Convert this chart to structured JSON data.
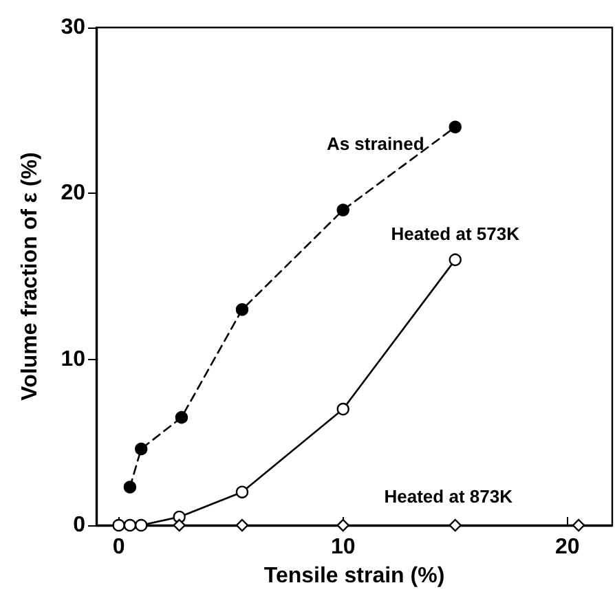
{
  "chart_data": {
    "type": "line",
    "xlabel": "Tensile strain (%)",
    "ylabel": "Volume fraction of ε (%)",
    "xlim": [
      -1,
      22
    ],
    "xticks": [
      0,
      10,
      20
    ],
    "ylim": [
      0,
      30
    ],
    "yticks": [
      0,
      10,
      20,
      30
    ],
    "grid": false,
    "legend": false,
    "series": [
      {
        "name": "As strained",
        "color": "#000000",
        "marker": "circle",
        "line_style": "dashed",
        "x": [
          0.5,
          1,
          2.8,
          5.5,
          10,
          15
        ],
        "values": [
          2.3,
          4.6,
          6.5,
          13,
          19,
          24
        ]
      },
      {
        "name": "Heated at 573K",
        "color": "#000000",
        "marker": "circle",
        "line_style": "solid",
        "x": [
          0,
          0.5,
          1,
          2.7,
          5.5,
          10,
          15
        ],
        "values": [
          0,
          0,
          0,
          0.5,
          2,
          7,
          16
        ]
      },
      {
        "name": "Heated at 873K",
        "type": "scatter",
        "color": "#000000",
        "marker": "diamond",
        "x": [
          2.7,
          5.5,
          10,
          15,
          20.5
        ],
        "values": [
          0,
          0,
          0,
          0,
          0
        ]
      }
    ]
  }
}
